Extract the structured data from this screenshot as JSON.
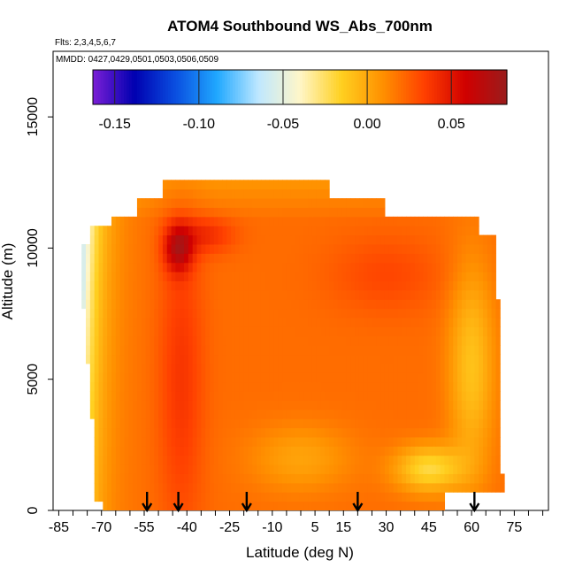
{
  "chart_data": {
    "type": "heatmap",
    "title": "ATOM4 Southbound WS_Abs_700nm",
    "flights_note": "Flts: 2,3,4,5,6,7",
    "dates_note": "MMDD: 0427,0429,0501,0503,0506,0509",
    "xlabel": "Latitude (deg N)",
    "ylabel": "Altitude (m)",
    "xlim": [
      -87,
      87
    ],
    "ylim": [
      0,
      17500
    ],
    "x_ticks": [
      -85,
      -70,
      -55,
      -40,
      -25,
      -10,
      5,
      15,
      30,
      45,
      60,
      75
    ],
    "y_ticks": [
      0,
      5000,
      10000,
      15000
    ],
    "colorbar": {
      "range": [
        -0.163,
        0.083
      ],
      "ticks": [
        -0.15,
        -0.1,
        -0.05,
        0.0,
        0.05
      ],
      "tick_labels": [
        "-0.15",
        "-0.10",
        "-0.05",
        "0.00",
        "0.05"
      ],
      "colors": [
        "#7b1fd6",
        "#0000b0",
        "#0a4fe0",
        "#20a8ff",
        "#bfe8ff",
        "#fff6c8",
        "#ffd020",
        "#ff9000",
        "#ff4000",
        "#d00000",
        "#9a1c1c"
      ]
    },
    "profile_latitudes": [
      -54,
      -43,
      -19,
      20,
      61
    ],
    "field": {
      "lat_range": [
        -77,
        72
      ],
      "alt_range": [
        0,
        12500
      ],
      "typical_value": 0.02,
      "max_value": 0.06,
      "max_location": {
        "lat": -43,
        "alt": 10000
      },
      "min_value": -0.06,
      "min_location": {
        "lat": -76,
        "alt": 9800
      }
    }
  }
}
